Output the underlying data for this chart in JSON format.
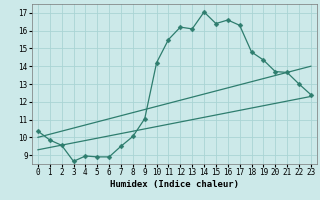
{
  "title": "",
  "xlabel": "Humidex (Indice chaleur)",
  "bg_color": "#cce9e9",
  "grid_color": "#aad4d4",
  "line_color": "#2e7d6e",
  "xlim": [
    -0.5,
    23.5
  ],
  "ylim": [
    8.5,
    17.5
  ],
  "xticks": [
    0,
    1,
    2,
    3,
    4,
    5,
    6,
    7,
    8,
    9,
    10,
    11,
    12,
    13,
    14,
    15,
    16,
    17,
    18,
    19,
    20,
    21,
    22,
    23
  ],
  "yticks": [
    9,
    10,
    11,
    12,
    13,
    14,
    15,
    16,
    17
  ],
  "main_x": [
    0,
    1,
    2,
    3,
    4,
    5,
    6,
    7,
    8,
    9,
    10,
    11,
    12,
    13,
    14,
    15,
    16,
    17,
    18,
    19,
    20,
    21,
    22,
    23
  ],
  "main_y": [
    10.35,
    9.85,
    9.55,
    8.65,
    8.95,
    8.9,
    8.9,
    9.5,
    10.05,
    11.05,
    14.2,
    15.5,
    16.2,
    16.1,
    17.05,
    16.4,
    16.6,
    16.3,
    14.8,
    14.35,
    13.7,
    13.65,
    13.0,
    12.4
  ],
  "line2_x": [
    0,
    23
  ],
  "line2_y": [
    10.0,
    14.0
  ],
  "line3_x": [
    0,
    23
  ],
  "line3_y": [
    9.3,
    12.3
  ],
  "marker": "D",
  "marker_size": 2.5,
  "linewidth": 0.9
}
